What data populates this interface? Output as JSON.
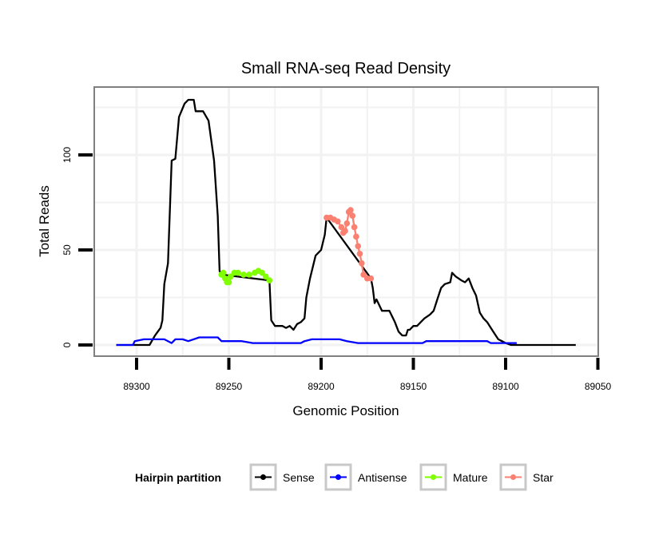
{
  "chart_data": {
    "type": "line",
    "title": "Small RNA-seq Read Density",
    "xlabel": "Genomic Position",
    "ylabel": "Total Reads",
    "x_reversed": true,
    "xlim": [
      89322,
      89048
    ],
    "ylim": [
      -5,
      137
    ],
    "xticks": [
      89300,
      89250,
      89200,
      89150,
      89100,
      89050
    ],
    "yticks": [
      0,
      50,
      100
    ],
    "grid": true,
    "legend": {
      "title": "Hairpin partition",
      "position": "bottom",
      "entries": [
        {
          "name": "Sense",
          "color": "#000000"
        },
        {
          "name": "Antisense",
          "color": "#0000FF"
        },
        {
          "name": "Mature",
          "color": "#7FFF00"
        },
        {
          "name": "Star",
          "color": "#FA8072"
        }
      ]
    },
    "series": [
      {
        "name": "Sense",
        "color": "#000000",
        "markers": false,
        "points": [
          [
            89311,
            0
          ],
          [
            89293,
            0
          ],
          [
            89290,
            5
          ],
          [
            89287,
            9
          ],
          [
            89286,
            13
          ],
          [
            89285,
            32
          ],
          [
            89283,
            43
          ],
          [
            89281,
            97
          ],
          [
            89279,
            98
          ],
          [
            89277,
            120
          ],
          [
            89274,
            127
          ],
          [
            89272,
            129
          ],
          [
            89269,
            129
          ],
          [
            89268,
            123
          ],
          [
            89264,
            123
          ],
          [
            89261,
            118
          ],
          [
            89258,
            97
          ],
          [
            89256,
            68
          ],
          [
            89255,
            39
          ],
          [
            89254,
            37
          ],
          [
            89228,
            34
          ],
          [
            89227,
            13
          ],
          [
            89225,
            10
          ],
          [
            89221,
            10
          ],
          [
            89219,
            9
          ],
          [
            89217,
            10
          ],
          [
            89215,
            8
          ],
          [
            89213,
            11
          ],
          [
            89211,
            12
          ],
          [
            89209,
            14
          ],
          [
            89208,
            25
          ],
          [
            89206,
            35
          ],
          [
            89203,
            47
          ],
          [
            89200,
            50
          ],
          [
            89198,
            58
          ],
          [
            89197,
            67
          ],
          [
            89173,
            35
          ],
          [
            89172,
            30
          ],
          [
            89171,
            22
          ],
          [
            89170,
            24
          ],
          [
            89169,
            22
          ],
          [
            89167,
            18
          ],
          [
            89163,
            18
          ],
          [
            89160,
            12
          ],
          [
            89158,
            7
          ],
          [
            89156,
            5
          ],
          [
            89154,
            5
          ],
          [
            89153,
            8
          ],
          [
            89152,
            8
          ],
          [
            89150,
            10
          ],
          [
            89148,
            10
          ],
          [
            89146,
            12
          ],
          [
            89144,
            14
          ],
          [
            89141,
            16
          ],
          [
            89139,
            18
          ],
          [
            89137,
            24
          ],
          [
            89135,
            30
          ],
          [
            89133,
            32
          ],
          [
            89130,
            33
          ],
          [
            89129,
            38
          ],
          [
            89127,
            36
          ],
          [
            89124,
            34
          ],
          [
            89122,
            33
          ],
          [
            89120,
            35
          ],
          [
            89118,
            30
          ],
          [
            89116,
            26
          ],
          [
            89114,
            17
          ],
          [
            89112,
            14
          ],
          [
            89110,
            12
          ],
          [
            89108,
            9
          ],
          [
            89106,
            6
          ],
          [
            89104,
            3
          ],
          [
            89102,
            2
          ],
          [
            89100,
            1
          ],
          [
            89097,
            0
          ],
          [
            89062,
            0
          ]
        ]
      },
      {
        "name": "Antisense",
        "color": "#0000FF",
        "markers": false,
        "points": [
          [
            89311,
            0
          ],
          [
            89302,
            0
          ],
          [
            89301,
            2
          ],
          [
            89296,
            3
          ],
          [
            89285,
            3
          ],
          [
            89281,
            1
          ],
          [
            89279,
            3
          ],
          [
            89275,
            3
          ],
          [
            89272,
            2
          ],
          [
            89266,
            4
          ],
          [
            89256,
            4
          ],
          [
            89254,
            2
          ],
          [
            89243,
            2
          ],
          [
            89237,
            1
          ],
          [
            89211,
            1
          ],
          [
            89209,
            2
          ],
          [
            89205,
            3
          ],
          [
            89190,
            3
          ],
          [
            89186,
            2
          ],
          [
            89180,
            1
          ],
          [
            89145,
            1
          ],
          [
            89143,
            2
          ],
          [
            89110,
            2
          ],
          [
            89108,
            1
          ],
          [
            89094,
            1
          ]
        ]
      },
      {
        "name": "Mature",
        "color": "#7FFF00",
        "markers": true,
        "points": [
          [
            89254,
            37
          ],
          [
            89253,
            38
          ],
          [
            89252,
            35
          ],
          [
            89251,
            33
          ],
          [
            89250,
            33
          ],
          [
            89249,
            36
          ],
          [
            89247,
            38
          ],
          [
            89245,
            38
          ],
          [
            89242,
            37
          ],
          [
            89239,
            37
          ],
          [
            89236,
            38
          ],
          [
            89234,
            39
          ],
          [
            89232,
            38
          ],
          [
            89230,
            36
          ],
          [
            89228,
            34
          ]
        ]
      },
      {
        "name": "Star",
        "color": "#FA8072",
        "markers": true,
        "points": [
          [
            89197,
            67
          ],
          [
            89195,
            67
          ],
          [
            89193,
            66
          ],
          [
            89191,
            65
          ],
          [
            89189,
            62
          ],
          [
            89188,
            59
          ],
          [
            89187,
            60
          ],
          [
            89186,
            64
          ],
          [
            89185,
            70
          ],
          [
            89184,
            71
          ],
          [
            89183,
            68
          ],
          [
            89182,
            62
          ],
          [
            89181,
            57
          ],
          [
            89180,
            52
          ],
          [
            89179,
            48
          ],
          [
            89178,
            43
          ],
          [
            89177,
            37
          ],
          [
            89175,
            35
          ],
          [
            89173,
            35
          ]
        ]
      }
    ]
  }
}
